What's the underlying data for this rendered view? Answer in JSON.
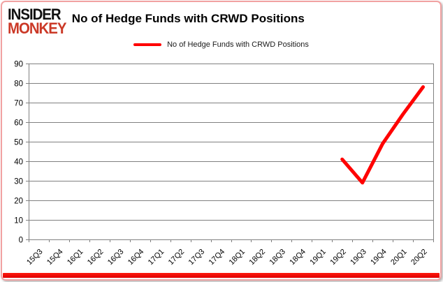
{
  "card": {
    "logo": {
      "line1": "INSIDER",
      "line2": "MONKEY"
    },
    "title": "No of Hedge Funds with CRWD Positions",
    "legend": {
      "label": "No of Hedge Funds with CRWD Positions"
    }
  },
  "colors": {
    "series_line": "#FF0000",
    "legend_swatch": "#FF0000",
    "logo_accent": "#CB3927",
    "card_border": "#F1A2A2",
    "bottom_bar": "#EE0202",
    "gridline": "#808080",
    "axis_text": "#000000"
  },
  "chart_data": {
    "type": "line",
    "title": "No of Hedge Funds with CRWD Positions",
    "categories": [
      "15Q3",
      "15Q4",
      "16Q1",
      "16Q2",
      "16Q3",
      "16Q4",
      "17Q1",
      "17Q2",
      "17Q3",
      "17Q4",
      "18Q1",
      "18Q2",
      "18Q3",
      "18Q4",
      "19Q1",
      "19Q2",
      "19Q3",
      "19Q4",
      "20Q1",
      "20Q2"
    ],
    "series": [
      {
        "name": "No of Hedge Funds with CRWD Positions",
        "color": "#FF0000",
        "values": [
          null,
          null,
          null,
          null,
          null,
          null,
          null,
          null,
          null,
          null,
          null,
          null,
          null,
          null,
          null,
          41,
          29,
          49,
          64,
          78
        ]
      }
    ],
    "ylim": [
      0,
      90
    ],
    "y_ticks": [
      0,
      10,
      20,
      30,
      40,
      50,
      60,
      70,
      80,
      90
    ],
    "grid": "horizontal",
    "legend_position": "top-center",
    "x_label_rotation": -45
  }
}
